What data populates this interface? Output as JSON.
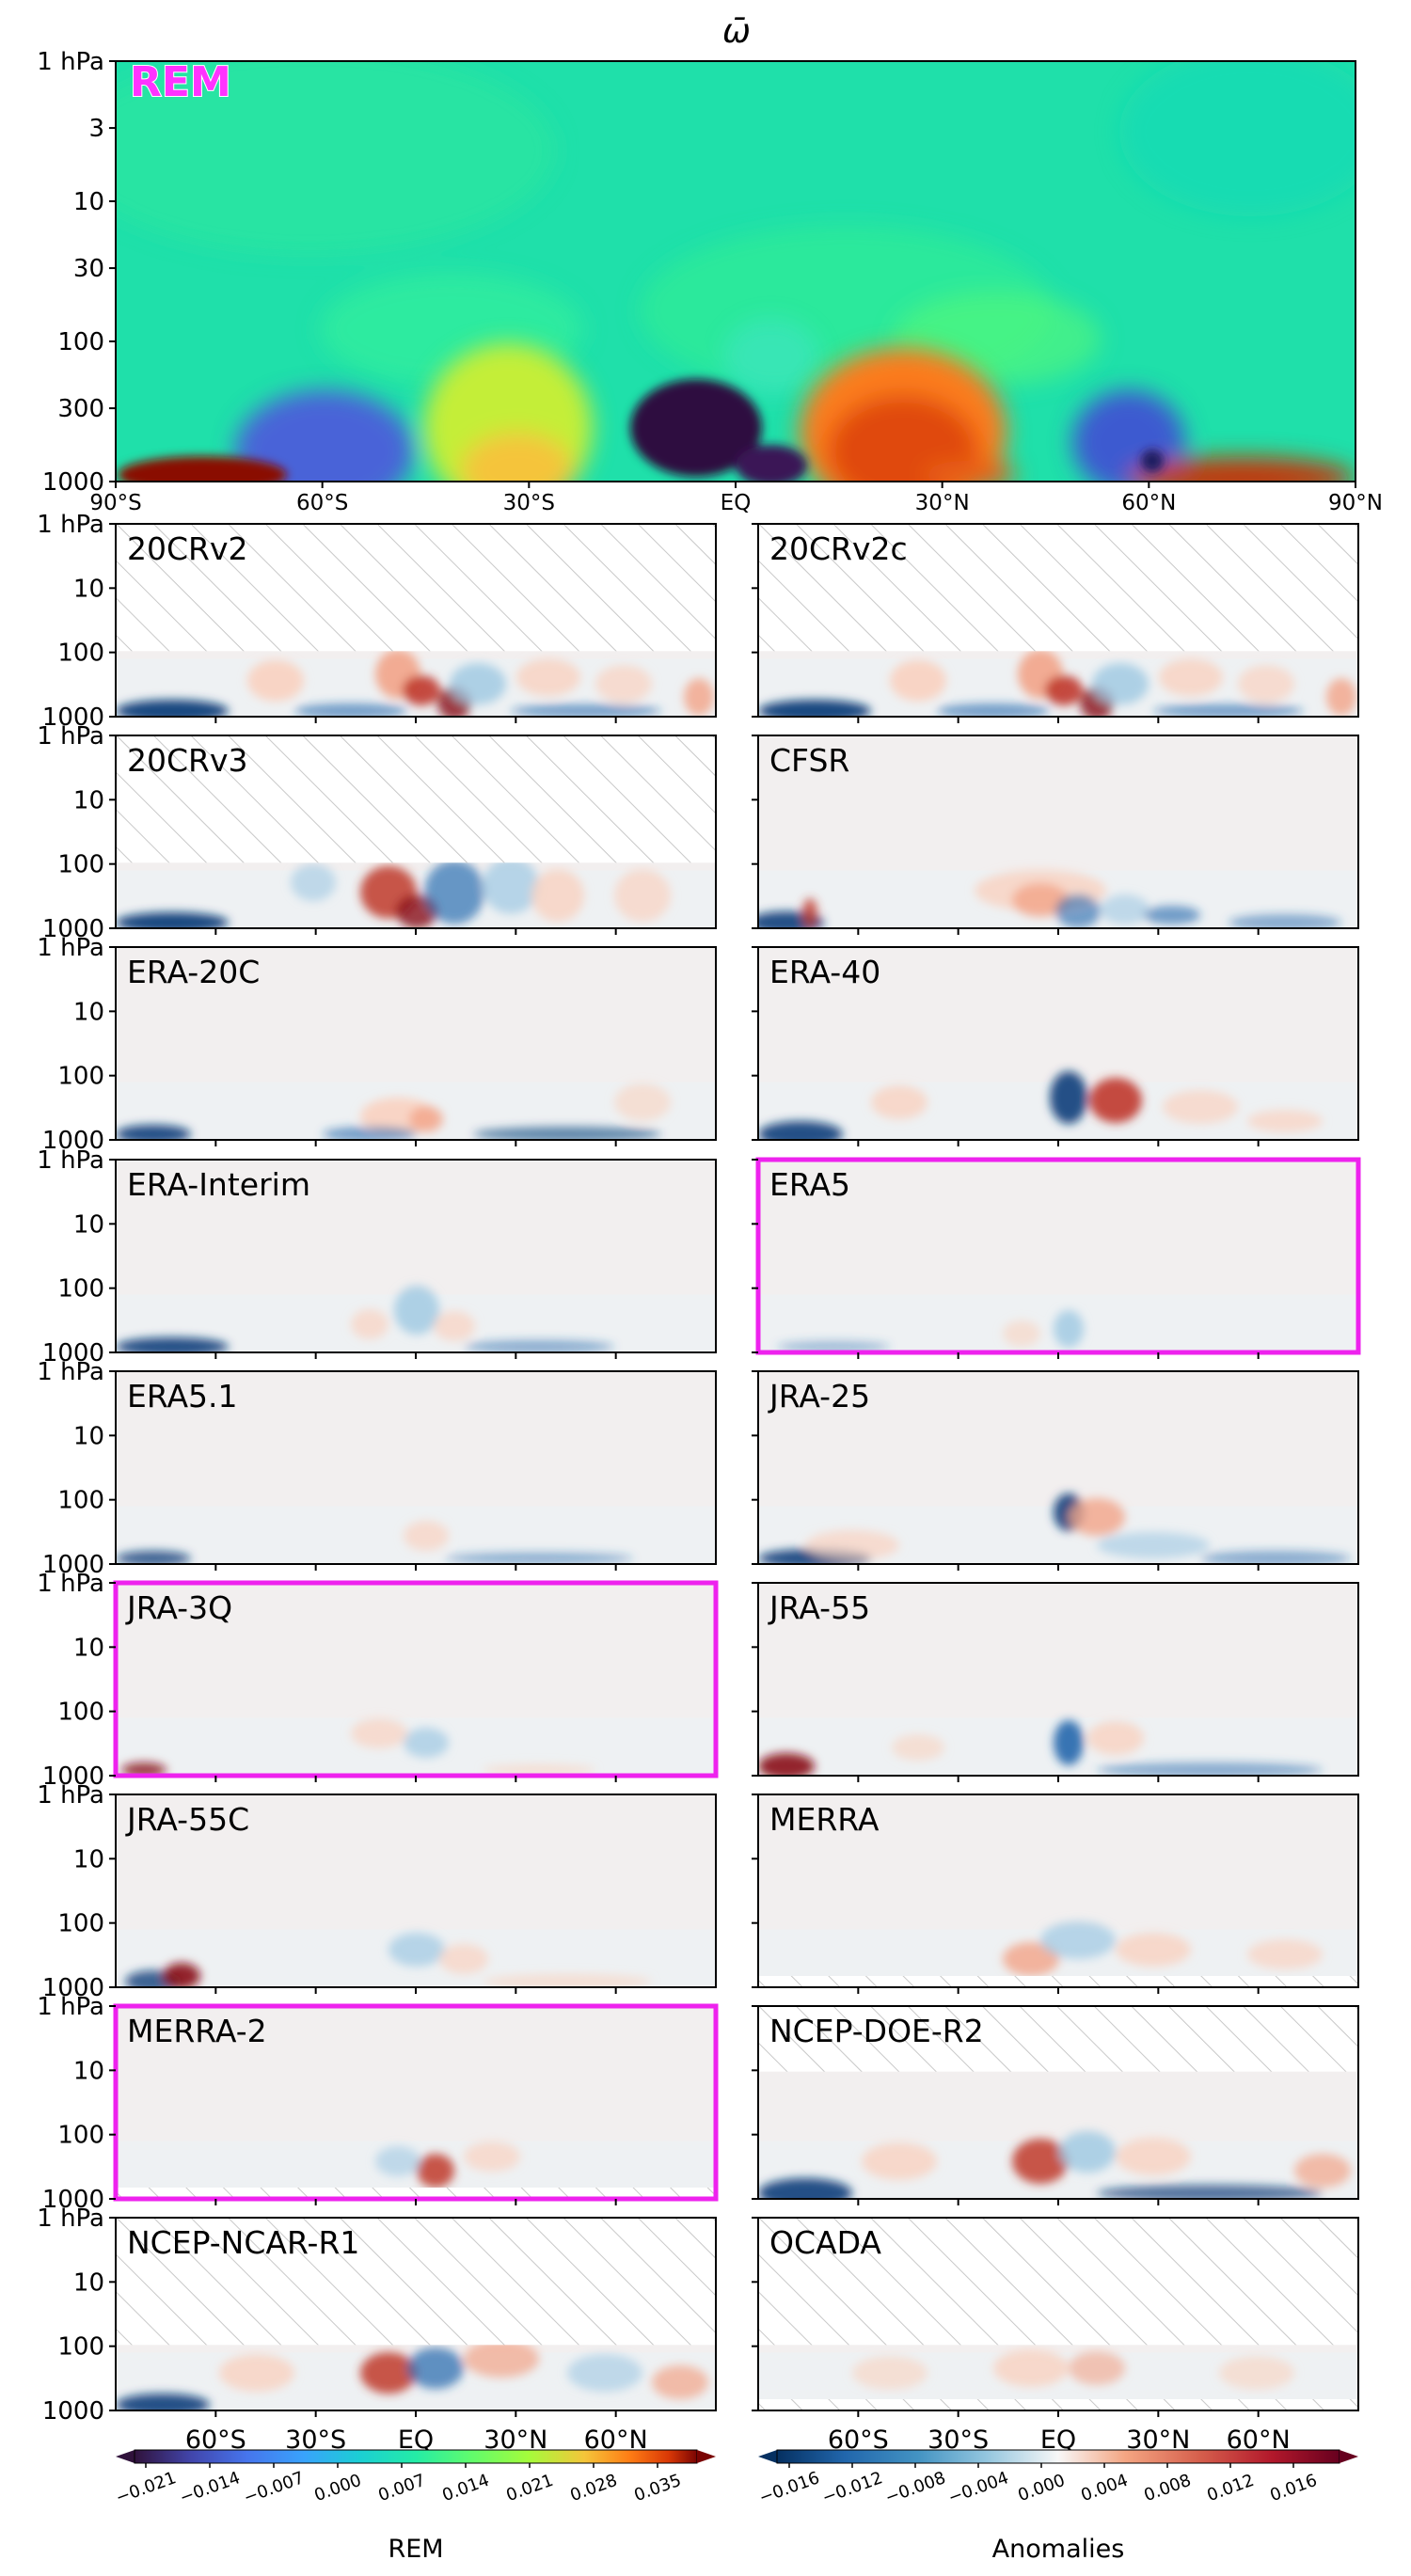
{
  "title": "ω̄",
  "colors": {
    "highlight": "#ee22ee",
    "hatch": "#c8c8c8",
    "frame": "#000000"
  },
  "top_panel": {
    "label": "REM",
    "y_ticks": [
      "1 hPa",
      "3",
      "10",
      "30",
      "100",
      "300",
      "1000"
    ],
    "x_ticks": [
      "90°S",
      "60°S",
      "30°S",
      "EQ",
      "30°N",
      "60°N",
      "90°N"
    ]
  },
  "small_y_ticks": [
    "1 hPa",
    "10",
    "100",
    "1000"
  ],
  "bottom_x_ticks": [
    "60°S",
    "30°S",
    "EQ",
    "30°N",
    "60°N"
  ],
  "panels": [
    {
      "label": "20CRv2",
      "highlight": false
    },
    {
      "label": "20CRv2c",
      "highlight": false
    },
    {
      "label": "20CRv3",
      "highlight": false
    },
    {
      "label": "CFSR",
      "highlight": false
    },
    {
      "label": "ERA-20C",
      "highlight": false
    },
    {
      "label": "ERA-40",
      "highlight": false
    },
    {
      "label": "ERA-Interim",
      "highlight": false
    },
    {
      "label": "ERA5",
      "highlight": true
    },
    {
      "label": "ERA5.1",
      "highlight": false
    },
    {
      "label": "JRA-25",
      "highlight": false
    },
    {
      "label": "JRA-3Q",
      "highlight": true
    },
    {
      "label": "JRA-55",
      "highlight": false
    },
    {
      "label": "JRA-55C",
      "highlight": false
    },
    {
      "label": "MERRA",
      "highlight": false
    },
    {
      "label": "MERRA-2",
      "highlight": true
    },
    {
      "label": "NCEP-DOE-R2",
      "highlight": false
    },
    {
      "label": "NCEP-NCAR-R1",
      "highlight": false
    },
    {
      "label": "OCADA",
      "highlight": false
    }
  ],
  "colorbars": [
    {
      "label": "REM",
      "colormap": "turbo",
      "ticks": [
        "−0.021",
        "−0.014",
        "−0.007",
        "0.000",
        "0.007",
        "0.014",
        "0.021",
        "0.028",
        "0.035"
      ]
    },
    {
      "label": "Anomalies",
      "colormap": "RdBu_r",
      "ticks": [
        "−0.016",
        "−0.012",
        "−0.008",
        "−0.004",
        "0.000",
        "0.004",
        "0.008",
        "0.012",
        "0.016"
      ]
    }
  ],
  "chart_data": {
    "type": "heatmap",
    "title": "ω̄",
    "x_axis": "latitude",
    "x_range": [
      -90,
      90
    ],
    "y_axis": "pressure (hPa), log scale, inverted",
    "y_range": [
      1000,
      1
    ],
    "rem_levels": [
      -0.021,
      -0.014,
      -0.007,
      0.0,
      0.007,
      0.014,
      0.021,
      0.028,
      0.035
    ],
    "anomaly_levels": [
      -0.016,
      -0.012,
      -0.008,
      -0.004,
      0.0,
      0.004,
      0.008,
      0.012,
      0.016
    ],
    "rem_features": [
      {
        "lat": [
          -88,
          -58
        ],
        "p": [
          1000,
          600
        ],
        "value": 0.035
      },
      {
        "lat": [
          -65,
          -40
        ],
        "p": [
          1000,
          200
        ],
        "value": -0.007
      },
      {
        "lat": [
          -35,
          -15
        ],
        "p": [
          1000,
          250
        ],
        "value": 0.012
      },
      {
        "lat": [
          -15,
          0
        ],
        "p": [
          800,
          180
        ],
        "value": -0.021
      },
      {
        "lat": [
          0,
          10
        ],
        "p": [
          1000,
          500
        ],
        "value": -0.02
      },
      {
        "lat": [
          10,
          30
        ],
        "p": [
          1000,
          180
        ],
        "value": 0.026
      },
      {
        "lat": [
          50,
          62
        ],
        "p": [
          1000,
          250
        ],
        "value": -0.008
      },
      {
        "lat": [
          60,
          85
        ],
        "p": [
          1000,
          700
        ],
        "value": 0.032
      }
    ]
  }
}
